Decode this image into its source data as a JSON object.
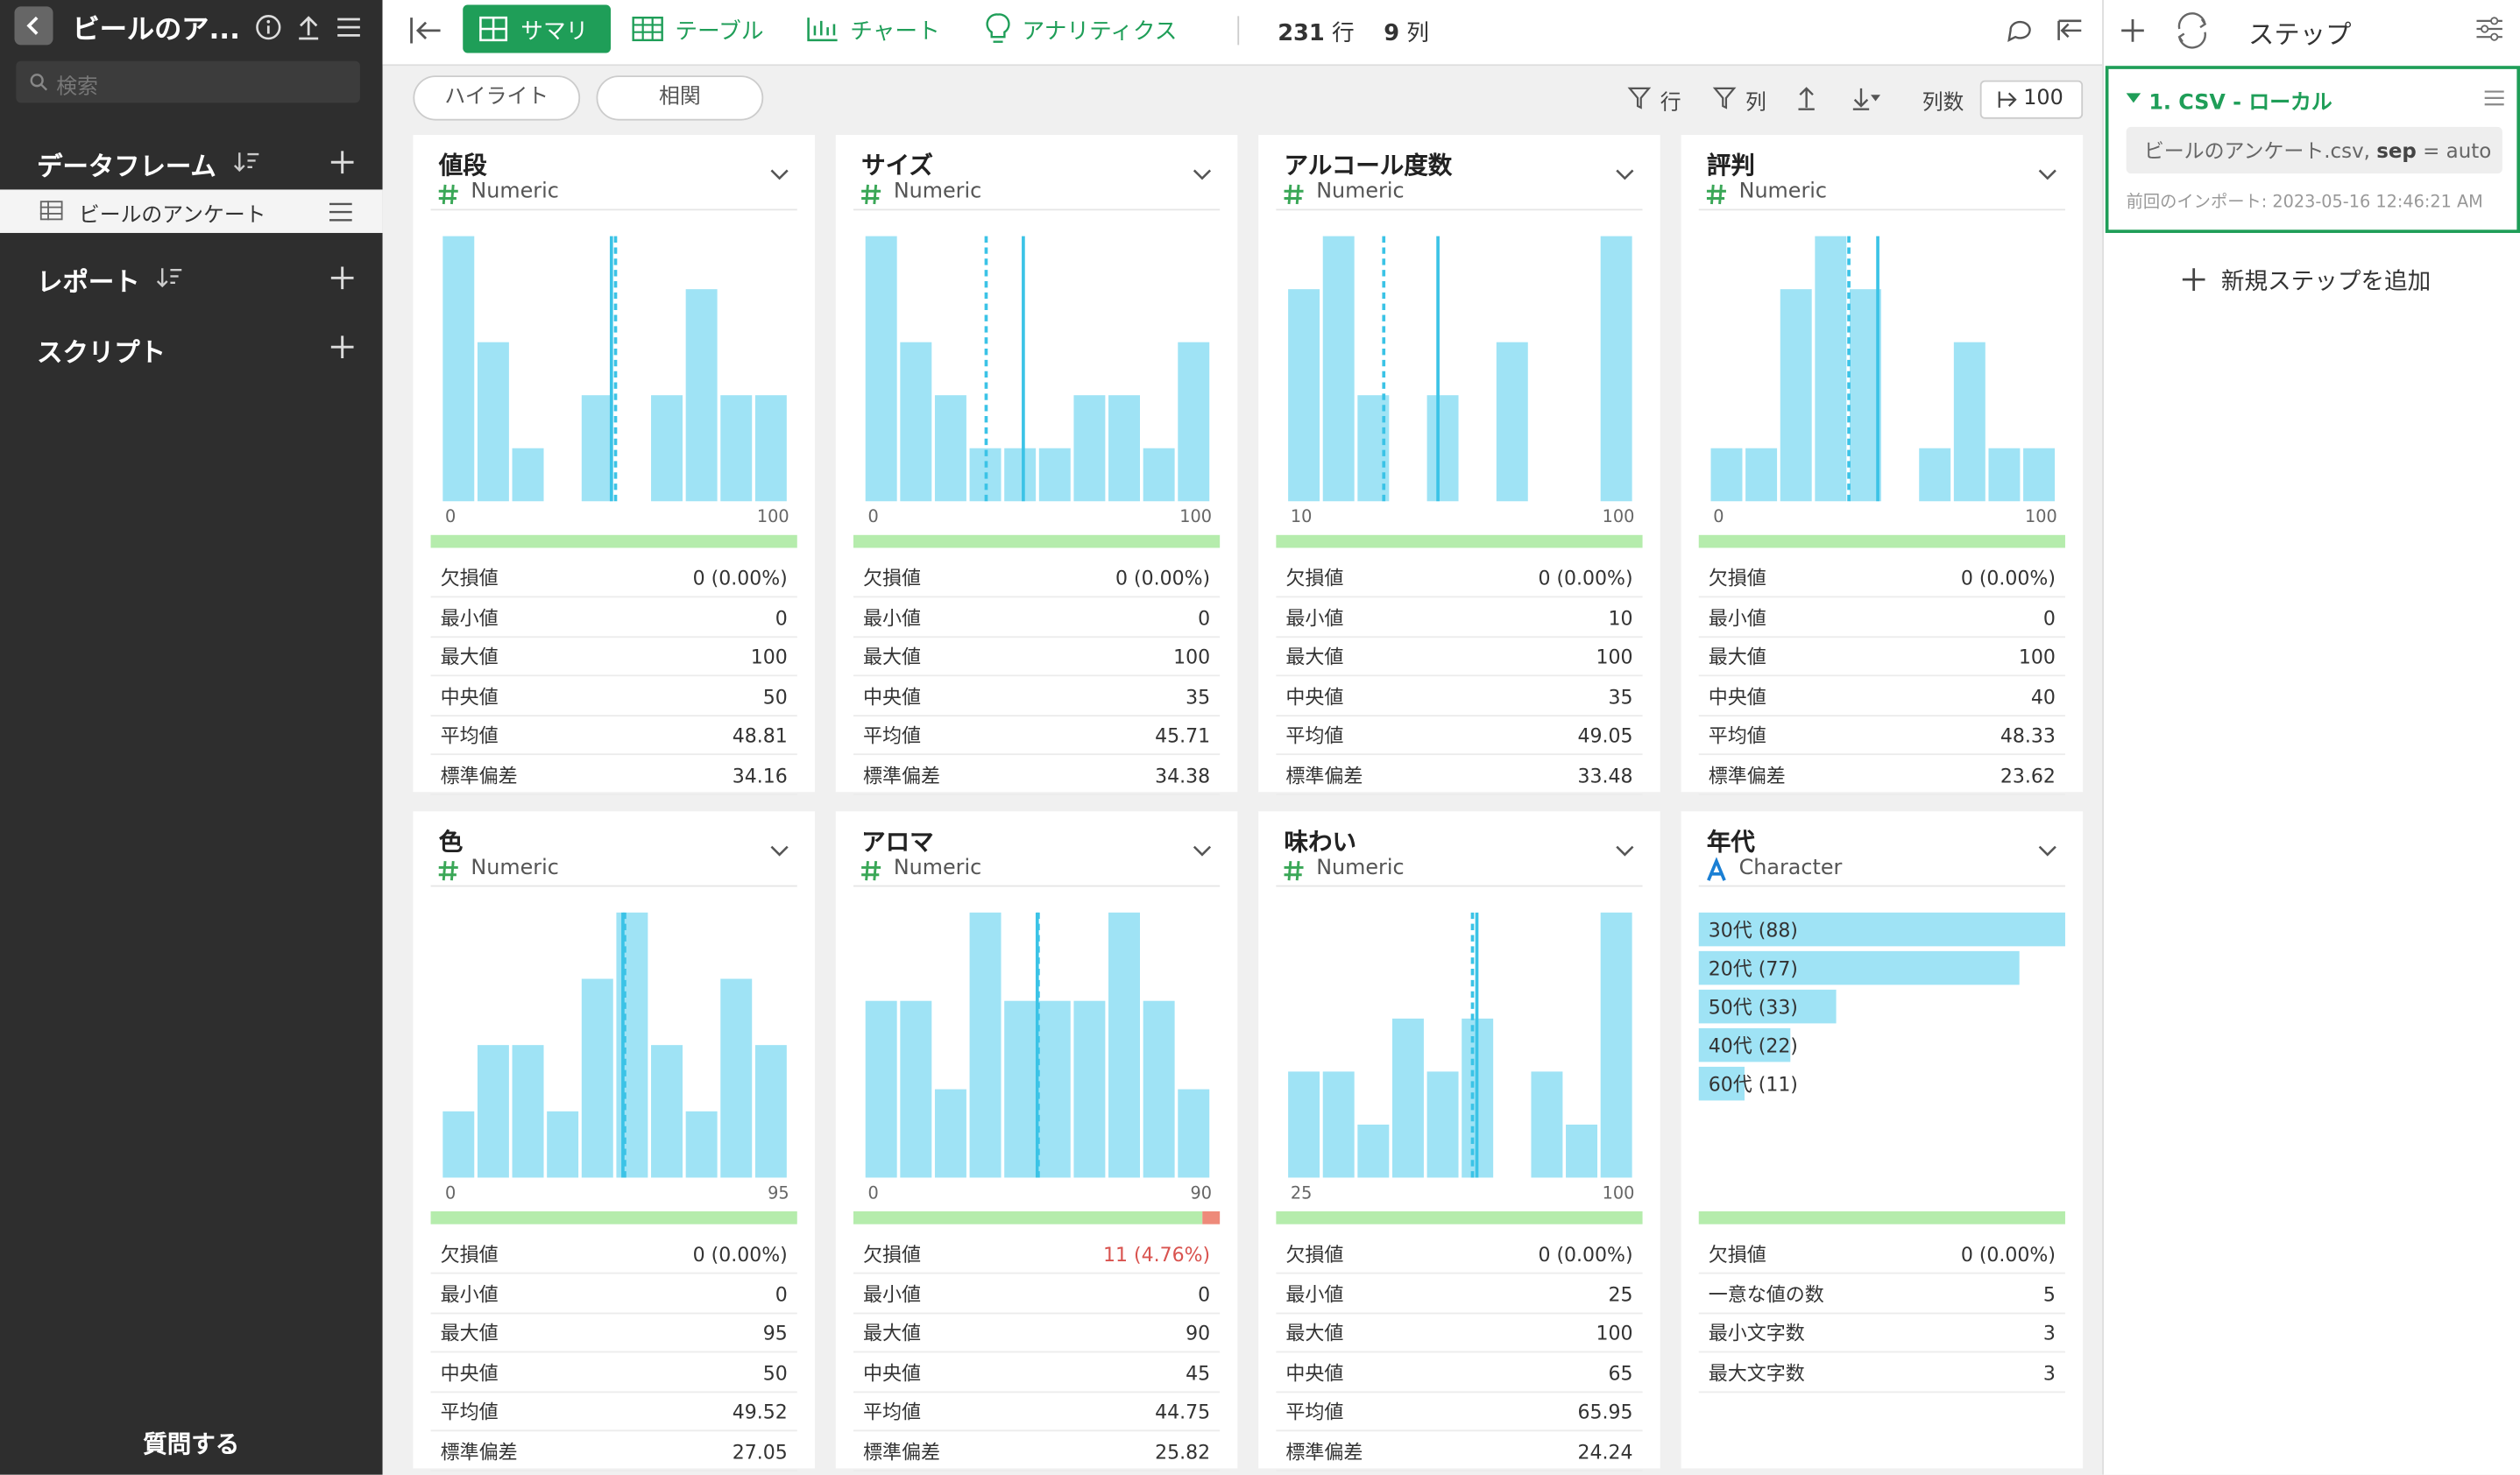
{
  "sidebar": {
    "title": "ビールのア...",
    "search_placeholder": "検索",
    "sections": [
      {
        "label": "データフレーム",
        "items": [
          "ビールのアンケート"
        ]
      },
      {
        "label": "レポート"
      },
      {
        "label": "スクリプト"
      }
    ],
    "ask": "質問する"
  },
  "toolbar": {
    "tabs": [
      "サマリ",
      "テーブル",
      "チャート",
      "アナリティクス"
    ],
    "rows": "231",
    "rows_unit": "行",
    "cols": "9",
    "cols_unit": "列",
    "filters": [
      "ハイライト",
      "相関"
    ],
    "actions": [
      "行",
      "列"
    ],
    "col_count_label": "列数",
    "col_count": "100"
  },
  "columns": [
    {
      "name": "値段",
      "type": "Numeric",
      "histogram": [
        5,
        3,
        1,
        0,
        2,
        0,
        2,
        4,
        2,
        2
      ],
      "missing_percent": 0,
      "stats": [
        {
          "label": "欠損値",
          "value": "0 (0.00%)"
        },
        {
          "label": "最小値",
          "value": 0
        },
        {
          "label": "最大値",
          "value": 100
        },
        {
          "label": "中央値",
          "value": 50
        },
        {
          "label": "平均値",
          "value": 48.81
        },
        {
          "label": "標準偏差",
          "value": 34.16
        }
      ]
    },
    {
      "name": "サイズ",
      "type": "Numeric",
      "histogram": [
        5,
        3,
        2,
        1,
        1,
        1,
        2,
        2,
        1,
        3
      ],
      "missing_percent": 0,
      "stats": [
        {
          "label": "欠損値",
          "value": "0 (0.00%)"
        },
        {
          "label": "最小値",
          "value": 0
        },
        {
          "label": "最大値",
          "value": 100
        },
        {
          "label": "中央値",
          "value": 35
        },
        {
          "label": "平均値",
          "value": 45.71
        },
        {
          "label": "標準偏差",
          "value": 34.38
        }
      ]
    },
    {
      "name": "アルコール度数",
      "type": "Numeric",
      "histogram": [
        4,
        5,
        2,
        0,
        2,
        0,
        3,
        0,
        0,
        5
      ],
      "missing_percent": 0,
      "stats": [
        {
          "label": "欠損値",
          "value": "0 (0.00%)"
        },
        {
          "label": "最小値",
          "value": 10
        },
        {
          "label": "最大値",
          "value": 100
        },
        {
          "label": "中央値",
          "value": 35
        },
        {
          "label": "平均値",
          "value": 49.05
        },
        {
          "label": "標準偏差",
          "value": 33.48
        }
      ]
    },
    {
      "name": "評判",
      "type": "Numeric",
      "histogram": [
        1,
        1,
        4,
        5,
        4,
        0,
        1,
        3,
        1,
        1
      ],
      "missing_percent": 0,
      "stats": [
        {
          "label": "欠損値",
          "value": "0 (0.00%)"
        },
        {
          "label": "最小値",
          "value": 0
        },
        {
          "label": "最大値",
          "value": 100
        },
        {
          "label": "中央値",
          "value": 40
        },
        {
          "label": "平均値",
          "value": 48.33
        },
        {
          "label": "標準偏差",
          "value": 23.62
        }
      ]
    },
    {
      "name": "色",
      "type": "Numeric",
      "histogram": [
        1,
        2,
        2,
        1,
        3,
        4,
        2,
        1,
        3,
        2
      ],
      "missing_percent": 0,
      "stats": [
        {
          "label": "欠損値",
          "value": "0 (0.00%)"
        },
        {
          "label": "最小値",
          "value": 0
        },
        {
          "label": "最大値",
          "value": 95
        },
        {
          "label": "中央値",
          "value": 50
        },
        {
          "label": "平均値",
          "value": 49.52
        },
        {
          "label": "標準偏差",
          "value": 27.05
        }
      ]
    },
    {
      "name": "アロマ",
      "type": "Numeric",
      "histogram": [
        2,
        2,
        1,
        3,
        2,
        2,
        2,
        3,
        2,
        1
      ],
      "missing_percent": 4.76,
      "stats": [
        {
          "label": "欠損値",
          "value": "11 (4.76%)"
        },
        {
          "label": "最小値",
          "value": 0
        },
        {
          "label": "最大値",
          "value": 90
        },
        {
          "label": "中央値",
          "value": 45
        },
        {
          "label": "平均値",
          "value": 44.75
        },
        {
          "label": "標準偏差",
          "value": 25.82
        }
      ]
    },
    {
      "name": "味わい",
      "type": "Numeric",
      "histogram": [
        2,
        2,
        1,
        3,
        2,
        3,
        0,
        2,
        1,
        5
      ],
      "missing_percent": 0,
      "stats": [
        {
          "label": "欠損値",
          "value": "0 (0.00%)"
        },
        {
          "label": "最小値",
          "value": 25
        },
        {
          "label": "最大値",
          "value": 100
        },
        {
          "label": "中央値",
          "value": 65
        },
        {
          "label": "平均値",
          "value": 65.95
        },
        {
          "label": "標準偏差",
          "value": 24.24
        }
      ]
    },
    {
      "name": "年代",
      "type": "Character",
      "missing_percent": 0,
      "bars": {
        "labels": [
          "30代 (88)",
          "20代 (77)",
          "50代 (33)",
          "40代 (22)",
          "60代 (11)"
        ],
        "values": [
          88,
          77,
          33,
          22,
          11
        ]
      },
      "stats": [
        {
          "label": "欠損値",
          "value": "0 (0.00%)"
        },
        {
          "label": "一意な値の数",
          "value": 5
        },
        {
          "label": "最小文字数",
          "value": 3
        },
        {
          "label": "最大文字数",
          "value": 3
        }
      ]
    }
  ],
  "steps_panel": {
    "title": "ステップ",
    "steps": [
      {
        "name": "1. CSV - ローカル",
        "detail": [
          "ビールのアンケート.csv, ",
          "sep",
          " = auto"
        ],
        "imported": "前回のインポート: 2023-05-16 12:46:21 AM"
      }
    ],
    "add": "新規ステップを追加"
  }
}
